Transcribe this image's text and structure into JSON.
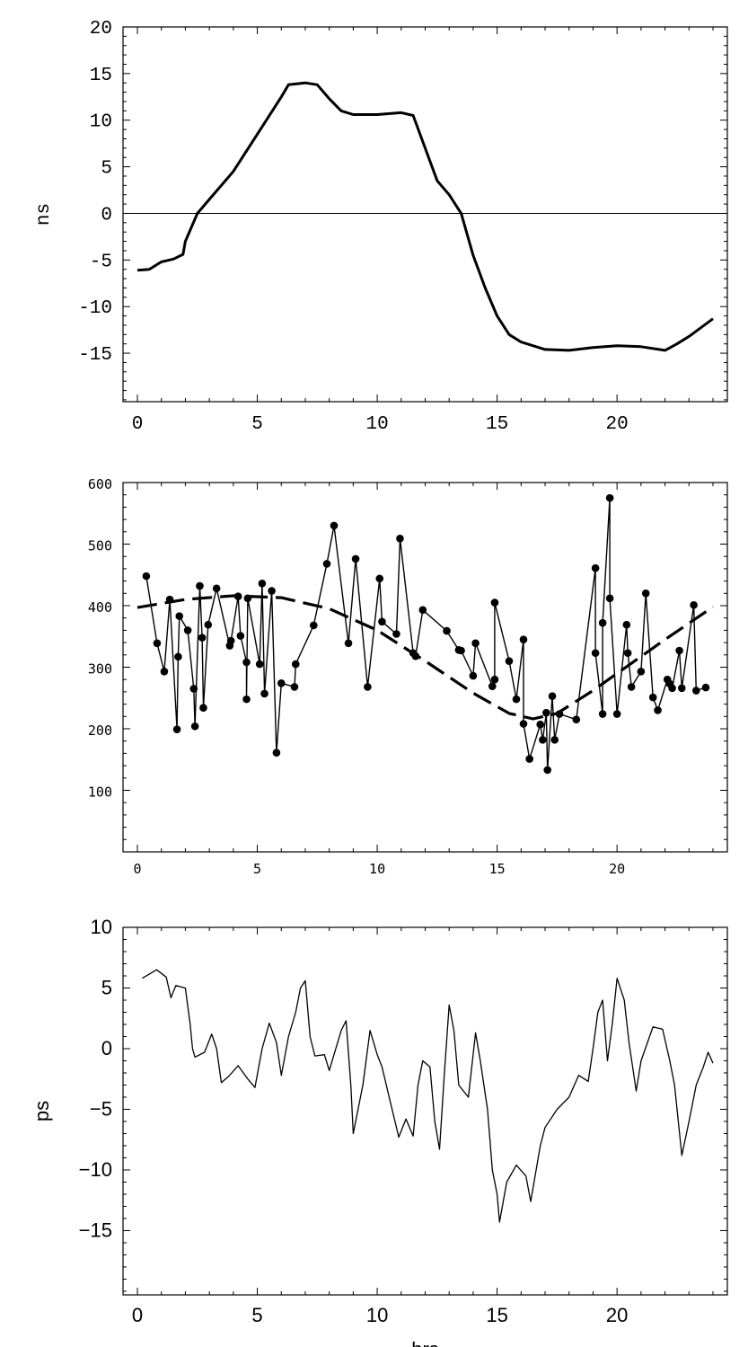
{
  "chart_data": [
    {
      "type": "line",
      "ylabel": "ns",
      "xlabel": "",
      "xlim": [
        -0.6,
        24.6
      ],
      "ylim": [
        -20.2,
        20
      ],
      "xticks": [
        0,
        5,
        10,
        15,
        20
      ],
      "yticks": [
        20,
        15,
        10,
        5,
        0,
        -5,
        -10,
        -15
      ],
      "zero_line": true,
      "grid": false,
      "series": [
        {
          "style": "solid-thick",
          "x": [
            0,
            0.5,
            1,
            1.5,
            1.9,
            2,
            2.5,
            3,
            4,
            5,
            6,
            6.3,
            7,
            7.5,
            8,
            8.5,
            9,
            10,
            11,
            11.5,
            12,
            12.5,
            13,
            13.5,
            14,
            14.5,
            15,
            15.5,
            16,
            17,
            18,
            19,
            20,
            21,
            22,
            22.5,
            23,
            24
          ],
          "y": [
            -6.1,
            -6,
            -5.2,
            -4.9,
            -4.4,
            -3,
            0,
            1.5,
            4.5,
            8.5,
            12.5,
            13.8,
            14,
            13.8,
            12.3,
            11,
            10.6,
            10.6,
            10.8,
            10.5,
            7,
            3.5,
            2,
            0,
            -4.5,
            -8,
            -11,
            -13,
            -13.8,
            -14.6,
            -14.7,
            -14.4,
            -14.2,
            -14.3,
            -14.7,
            -14,
            -13.2,
            -11.3
          ]
        }
      ]
    },
    {
      "type": "scatter",
      "xlabel": "",
      "ylabel": "",
      "xlim": [
        -0.6,
        24.6
      ],
      "ylim": [
        0,
        600
      ],
      "xticks": [
        0,
        5,
        10,
        15,
        20
      ],
      "yticks": [
        600,
        500,
        400,
        300,
        200,
        100
      ],
      "grid": false,
      "series": [
        {
          "style": "points-connected",
          "x": [
            0.37,
            0.82,
            1.12,
            1.35,
            1.65,
            1.7,
            1.75,
            2.1,
            2.35,
            2.4,
            2.6,
            2.7,
            2.75,
            2.95,
            3.3,
            3.85,
            3.9,
            4.2,
            4.3,
            4.55,
            4.55,
            4.6,
            5.1,
            5.2,
            5.3,
            5.6,
            5.8,
            6.0,
            6.55,
            6.6,
            7.35,
            7.9,
            8.2,
            8.8,
            9.1,
            9.6,
            10.1,
            10.2,
            10.8,
            10.95,
            11.5,
            11.6,
            11.9,
            12.9,
            13.4,
            13.5,
            14.0,
            14.1,
            14.8,
            14.9,
            14.9,
            15.5,
            15.8,
            16.1,
            16.1,
            16.35,
            16.8,
            16.9,
            17.05,
            17.1,
            17.3,
            17.4,
            17.6,
            18.3,
            19.1,
            19.1,
            19.4,
            19.4,
            19.7,
            19.7,
            20.0,
            20.4,
            20.45,
            20.6,
            21.0,
            21.2,
            21.5,
            21.7,
            22.1,
            22.2,
            22.3,
            22.6,
            22.7,
            23.2,
            23.3,
            23.7
          ],
          "y": [
            448,
            339,
            293,
            410,
            199,
            317,
            383,
            360,
            265,
            204,
            432,
            348,
            234,
            369,
            428,
            335,
            343,
            415,
            351,
            308,
            248,
            412,
            305,
            436,
            257,
            424,
            161,
            274,
            268,
            305,
            368,
            468,
            530,
            339,
            476,
            268,
            444,
            374,
            354,
            509,
            323,
            318,
            393,
            359,
            328,
            327,
            286,
            339,
            269,
            280,
            405,
            310,
            248,
            345,
            208,
            151,
            207,
            182,
            226,
            133,
            253,
            182,
            224,
            215,
            461,
            323,
            224,
            372,
            575,
            412,
            224,
            369,
            323,
            268,
            293,
            420,
            251,
            230,
            280,
            273,
            266,
            327,
            266,
            401,
            262,
            267
          ]
        },
        {
          "style": "dashed-fit",
          "x": [
            0,
            2,
            4,
            6,
            8,
            10,
            12,
            14,
            15.5,
            16.5,
            17.5,
            19,
            20,
            22,
            24
          ],
          "y": [
            397,
            410,
            416,
            413,
            395,
            360,
            310,
            258,
            225,
            216,
            225,
            262,
            290,
            345,
            398
          ]
        }
      ]
    },
    {
      "type": "line",
      "ylabel": "ps",
      "xlabel": "hrs",
      "xlim": [
        -0.6,
        24.6
      ],
      "ylim": [
        -20.3,
        10
      ],
      "xticks": [
        0,
        5,
        10,
        15,
        20
      ],
      "yticks": [
        10,
        5,
        0,
        -5,
        -10,
        -15
      ],
      "grid": false,
      "series": [
        {
          "style": "solid-thin",
          "x": [
            0.2,
            0.8,
            1.2,
            1.4,
            1.6,
            2.0,
            2.2,
            2.3,
            2.4,
            2.8,
            3.1,
            3.3,
            3.5,
            3.8,
            4.2,
            4.6,
            4.9,
            5.2,
            5.5,
            5.8,
            6.0,
            6.3,
            6.6,
            6.8,
            7.0,
            7.2,
            7.4,
            7.8,
            8.0,
            8.5,
            8.7,
            8.9,
            9.0,
            9.4,
            9.7,
            10.0,
            10.2,
            10.5,
            10.9,
            11.2,
            11.5,
            11.7,
            11.9,
            12.2,
            12.4,
            12.6,
            12.8,
            13.0,
            13.2,
            13.4,
            13.8,
            14.1,
            14.3,
            14.6,
            14.8,
            15.0,
            15.1,
            15.4,
            15.8,
            16.2,
            16.4,
            16.8,
            17.0,
            17.5,
            18.0,
            18.4,
            18.8,
            19.0,
            19.2,
            19.4,
            19.6,
            19.8,
            20.0,
            20.3,
            20.5,
            20.8,
            21.0,
            21.5,
            21.9,
            22.2,
            22.4,
            22.7,
            23.0,
            23.3,
            23.6,
            23.8,
            24.0
          ],
          "y": [
            5.8,
            6.5,
            5.9,
            4.2,
            5.2,
            5.0,
            2,
            0,
            -0.7,
            -0.3,
            1.2,
            0,
            -2.8,
            -2.3,
            -1.4,
            -2.5,
            -3.2,
            0,
            2.1,
            0.5,
            -2.2,
            1,
            3,
            5,
            5.6,
            1,
            -0.6,
            -0.5,
            -1.8,
            1.5,
            2.3,
            -3,
            -7,
            -3,
            1.5,
            -0.5,
            -1.5,
            -4,
            -7.3,
            -5.8,
            -7.2,
            -3,
            -1,
            -1.5,
            -6,
            -8.3,
            -2,
            3.6,
            1.5,
            -3,
            -4,
            1.3,
            -1,
            -5,
            -10,
            -12,
            -14.3,
            -11,
            -9.6,
            -10.5,
            -12.6,
            -8,
            -6.5,
            -5,
            -4,
            -2.2,
            -2.7,
            0,
            3,
            4,
            -1,
            2,
            5.8,
            4,
            0.5,
            -3.5,
            -1,
            1.8,
            1.6,
            -1,
            -3,
            -8.8,
            -6,
            -3,
            -1.5,
            -0.3,
            -1.2
          ]
        }
      ]
    }
  ]
}
